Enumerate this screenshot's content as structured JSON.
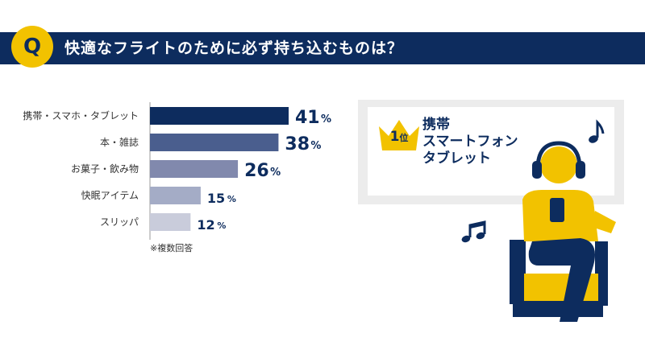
{
  "header": {
    "badge": "Q",
    "question": "快適なフライトのために必ず持ち込むものは？"
  },
  "note": "※複数回答",
  "ranking": {
    "rank_number": "1",
    "rank_suffix": "位",
    "items": [
      "携帯",
      "スマートフォン",
      "タブレット"
    ]
  },
  "icons": [
    "crown-icon",
    "music-note-icon",
    "double-music-note-icon",
    "person-with-headphones-icon",
    "seat-icon"
  ],
  "colors": {
    "navy": "#0d2c5e",
    "yellow": "#f2c200",
    "bar_colors": [
      "#0d2c5e",
      "#4a5e8e",
      "#8189ad",
      "#a4acc6",
      "#c9ccdb"
    ]
  },
  "chart_data": {
    "type": "bar",
    "orientation": "horizontal",
    "categories": [
      "携帯・スマホ・タブレット",
      "本・雑誌",
      "お菓子・飲み物",
      "快眠アイテム",
      "スリッパ"
    ],
    "values": [
      41,
      38,
      26,
      15,
      12
    ],
    "unit": "%",
    "xlim": [
      0,
      41
    ]
  }
}
